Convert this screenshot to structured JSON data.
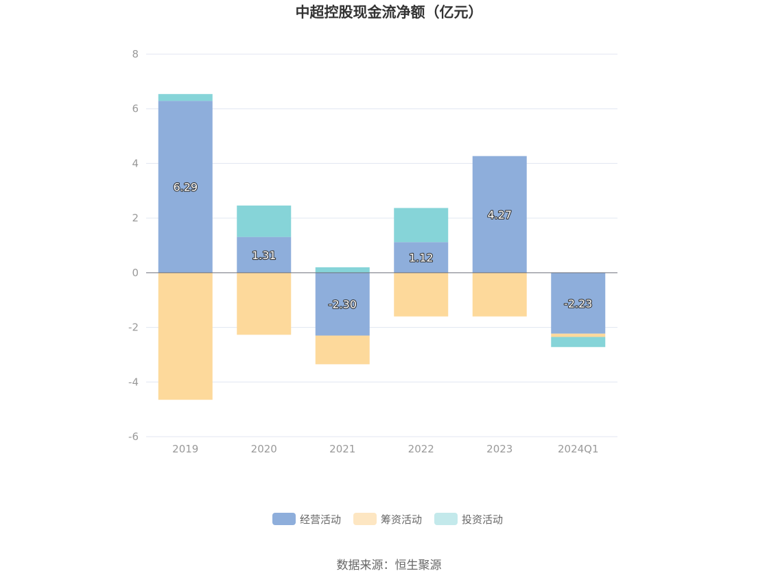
{
  "chart_data": {
    "type": "bar",
    "stacked": true,
    "title": "中超控股现金流净额（亿元）",
    "categories": [
      "2019",
      "2020",
      "2021",
      "2022",
      "2023",
      "2024Q1"
    ],
    "ylim": [
      -6,
      8
    ],
    "yticks": [
      8,
      6,
      4,
      2,
      0,
      -2,
      -4,
      -6
    ],
    "grid": true,
    "legend_position": "bottom",
    "series": [
      {
        "name": "经营活动",
        "color": "#8eaedb",
        "values": [
          6.29,
          1.31,
          -2.3,
          1.12,
          4.27,
          -2.23
        ]
      },
      {
        "name": "筹资活动",
        "color": "#fdd99b",
        "values": [
          -4.65,
          -2.27,
          -1.05,
          -1.6,
          -1.6,
          -0.12
        ]
      },
      {
        "name": "投资活动",
        "color": "#86d4d8",
        "values": [
          0.25,
          1.15,
          0.2,
          1.25,
          0.0,
          -0.37
        ]
      }
    ],
    "data_labels": [
      "6.29",
      "1.31",
      "-2.30",
      "1.12",
      "4.27",
      "-2.23"
    ],
    "legend_colors": [
      "#8eaedb",
      "#fde6c2",
      "#c3e9eb"
    ]
  },
  "source_text": "数据来源：恒生聚源"
}
